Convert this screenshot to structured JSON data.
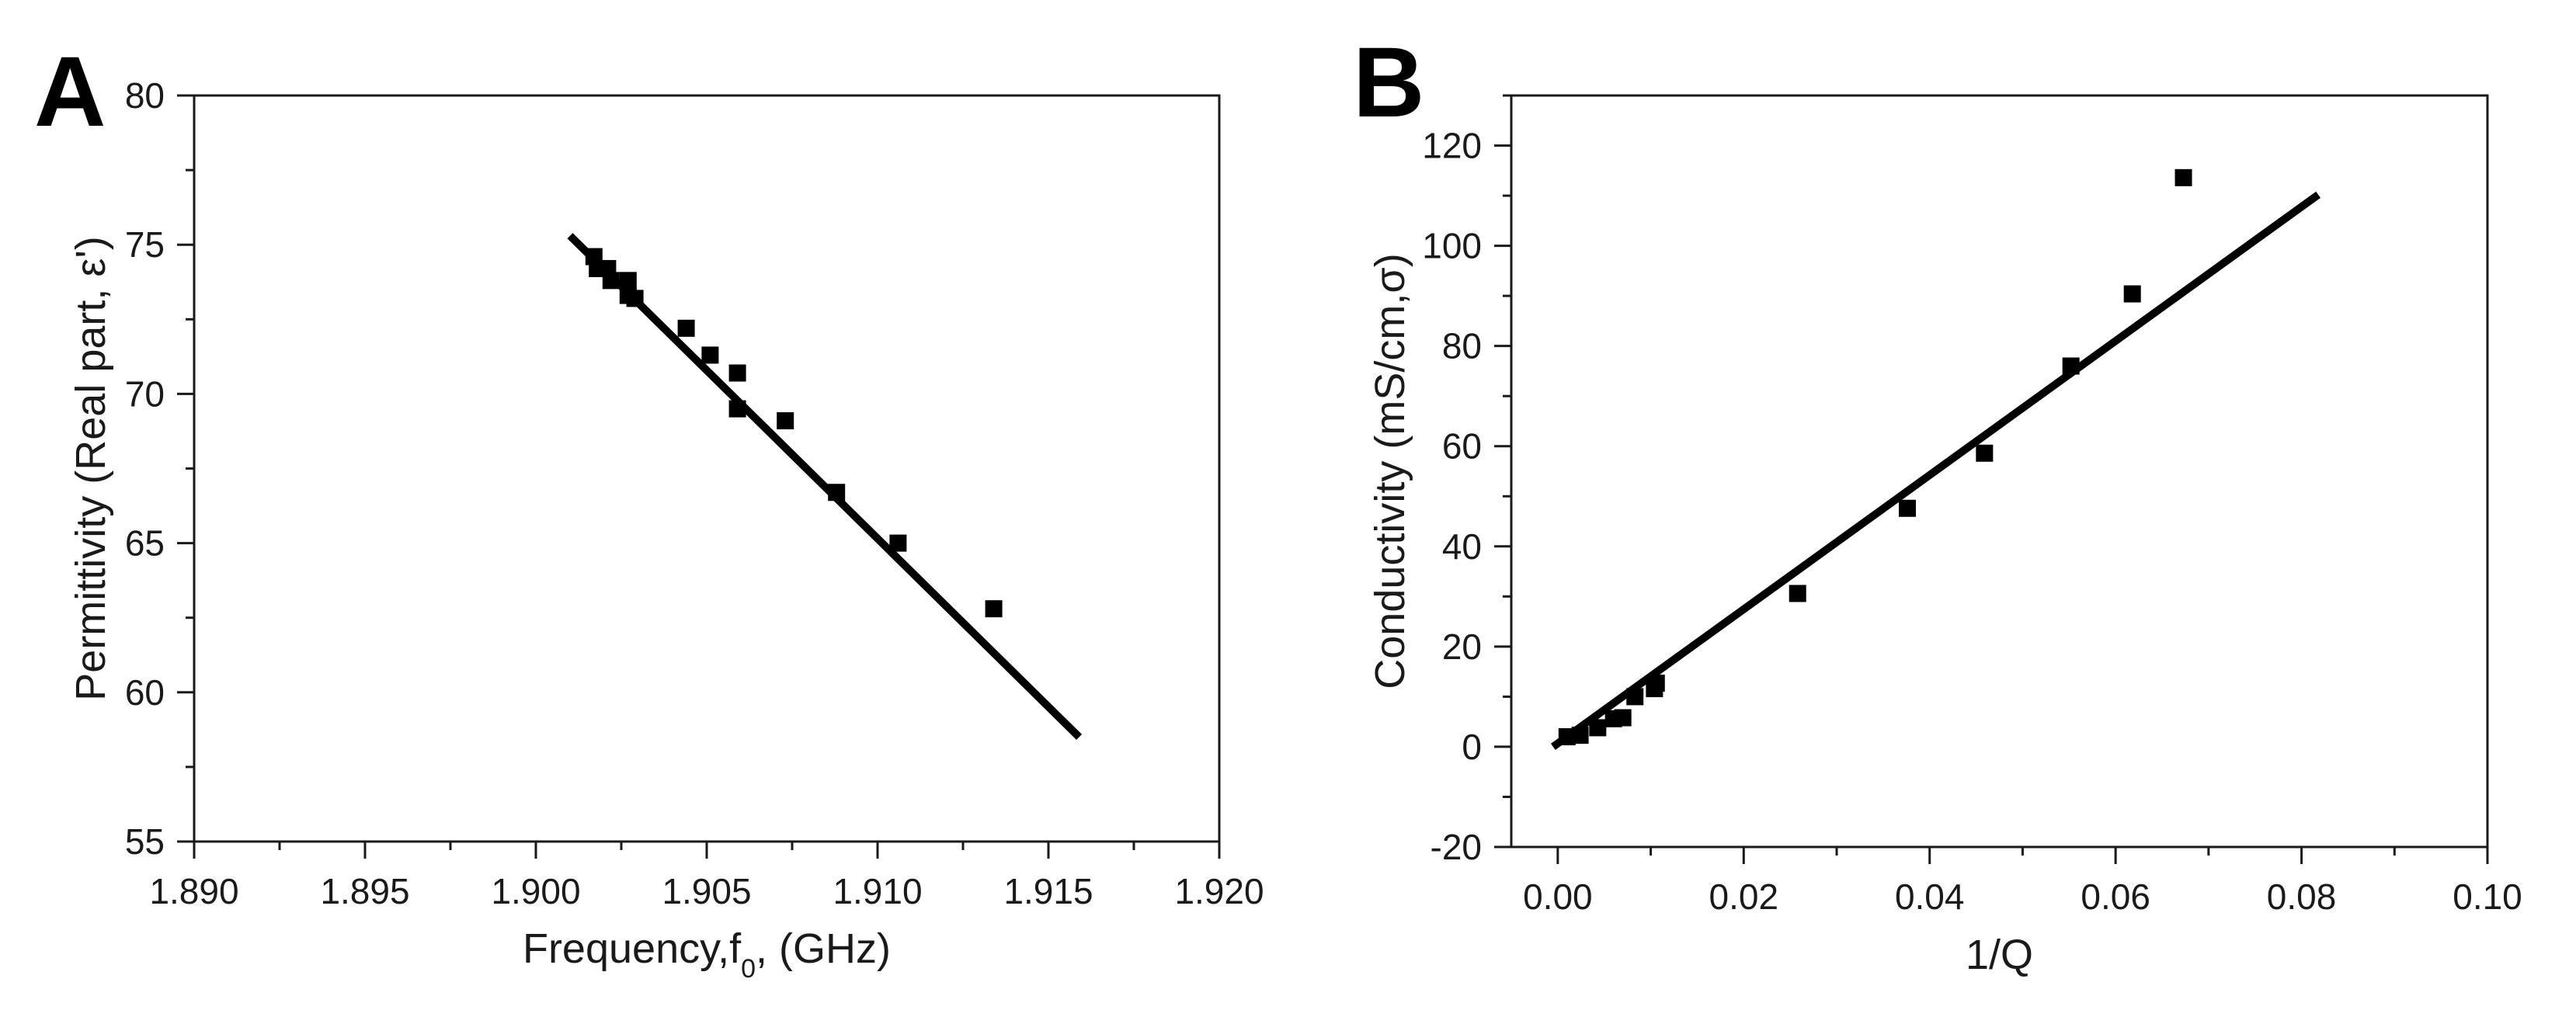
{
  "chart_data": [
    {
      "panel": "A",
      "type": "scatter",
      "title": "",
      "xlabel": "Frequency,f",
      "xlabel_sub": "0",
      "xlabel_suffix": ", (GHz)",
      "ylabel": "Permittivity (Real part, ε')",
      "xlim": [
        1.89,
        1.92
      ],
      "ylim": [
        55,
        80
      ],
      "xticks": [
        1.89,
        1.895,
        1.9,
        1.905,
        1.91,
        1.915,
        1.92
      ],
      "xtick_labels": [
        "1.890",
        "1.895",
        "1.900",
        "1.905",
        "1.910",
        "1.915",
        "1.920"
      ],
      "yticks": [
        55,
        60,
        65,
        70,
        75,
        80
      ],
      "ytick_labels": [
        "55",
        "60",
        "65",
        "70",
        "75",
        "80"
      ],
      "x_minor_step": 0.0025,
      "y_minor_step": 2.5,
      "marker_color": "#000000",
      "points": [
        {
          "x": 1.9017,
          "y": 74.6
        },
        {
          "x": 1.9018,
          "y": 74.2
        },
        {
          "x": 1.9021,
          "y": 74.2
        },
        {
          "x": 1.9022,
          "y": 73.8
        },
        {
          "x": 1.9027,
          "y": 73.8
        },
        {
          "x": 1.9027,
          "y": 73.3
        },
        {
          "x": 1.9029,
          "y": 73.2
        },
        {
          "x": 1.9044,
          "y": 72.2
        },
        {
          "x": 1.9051,
          "y": 71.3
        },
        {
          "x": 1.9059,
          "y": 70.7
        },
        {
          "x": 1.9059,
          "y": 69.5
        },
        {
          "x": 1.9073,
          "y": 69.1
        },
        {
          "x": 1.9088,
          "y": 66.7
        },
        {
          "x": 1.9106,
          "y": 65.0
        },
        {
          "x": 1.9134,
          "y": 62.8
        }
      ],
      "fit_line": {
        "x": [
          1.901,
          1.9159
        ],
        "y": [
          75.3,
          58.5
        ]
      }
    },
    {
      "panel": "B",
      "type": "scatter",
      "title": "",
      "xlabel": "1/Q",
      "ylabel": "Conductivity (mS/cm,σ)",
      "xlim": [
        -0.005,
        0.1
      ],
      "ylim": [
        -20,
        130
      ],
      "xticks": [
        0.0,
        0.02,
        0.04,
        0.06,
        0.08,
        0.1
      ],
      "xtick_labels": [
        "0.00",
        "0.02",
        "0.04",
        "0.06",
        "0.08",
        "0.10"
      ],
      "yticks": [
        -20,
        0,
        20,
        40,
        60,
        80,
        100,
        120
      ],
      "ytick_labels": [
        "-20",
        "0",
        "20",
        "40",
        "60",
        "80",
        "100",
        "120"
      ],
      "x_minor_step": 0.01,
      "y_minor_step": 10,
      "marker_color": "#000000",
      "points": [
        {
          "x": 0.001,
          "y": 2.0
        },
        {
          "x": 0.0024,
          "y": 2.3
        },
        {
          "x": 0.0043,
          "y": 3.8
        },
        {
          "x": 0.006,
          "y": 5.6
        },
        {
          "x": 0.007,
          "y": 5.8
        },
        {
          "x": 0.0083,
          "y": 10.0
        },
        {
          "x": 0.0104,
          "y": 11.6
        },
        {
          "x": 0.0106,
          "y": 12.7
        },
        {
          "x": 0.0258,
          "y": 30.6
        },
        {
          "x": 0.0376,
          "y": 47.6
        },
        {
          "x": 0.0459,
          "y": 58.6
        },
        {
          "x": 0.0552,
          "y": 76.0
        },
        {
          "x": 0.0618,
          "y": 90.4
        },
        {
          "x": 0.0673,
          "y": 113.6
        }
      ],
      "fit_line": {
        "x": [
          -0.0005,
          0.0818
        ],
        "y": [
          0.0,
          110.2
        ]
      }
    }
  ]
}
